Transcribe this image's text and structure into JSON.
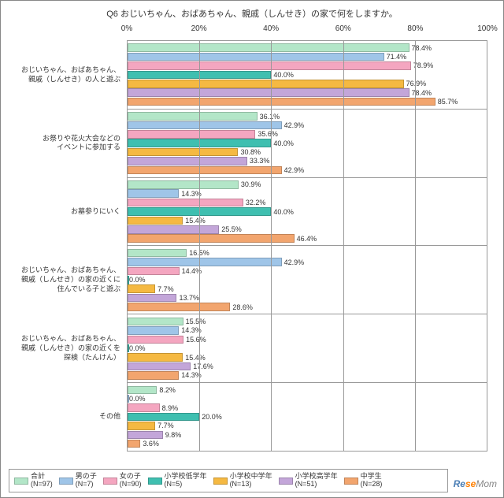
{
  "title": "Q6 おじいちゃん、おばあちゃん、親戚（しんせき）の家で何をしますか。",
  "xaxis": {
    "min": 0,
    "max": 100,
    "ticks": [
      0,
      20,
      40,
      60,
      80,
      100
    ],
    "unit": "%"
  },
  "series": [
    {
      "key": "total",
      "label": "合計\n(N=97)",
      "color": "#b3e6c8"
    },
    {
      "key": "boy",
      "label": "男の子\n(N=7)",
      "color": "#9fc5e8"
    },
    {
      "key": "girl",
      "label": "女の子\n(N=90)",
      "color": "#f4a6c0"
    },
    {
      "key": "low",
      "label": "小学校低学年\n(N=5)",
      "color": "#3fbfb0"
    },
    {
      "key": "mid",
      "label": "小学校中学年\n(N=13)",
      "color": "#f5b942"
    },
    {
      "key": "high",
      "label": "小学校高学年\n(N=51)",
      "color": "#c3a6d9"
    },
    {
      "key": "jhs",
      "label": "中学生\n(N=28)",
      "color": "#f2a56e"
    }
  ],
  "categories": [
    {
      "label": "おじいちゃん、おばあちゃん、\n親戚（しんせき）の人と遊ぶ",
      "values": {
        "total": 78.4,
        "boy": 71.4,
        "girl": 78.9,
        "low": 40.0,
        "mid": 76.9,
        "high": 78.4,
        "jhs": 85.7
      }
    },
    {
      "label": "お祭りや花火大会などの\nイベントに参加する",
      "values": {
        "total": 36.1,
        "boy": 42.9,
        "girl": 35.6,
        "low": 40.0,
        "mid": 30.8,
        "high": 33.3,
        "jhs": 42.9
      }
    },
    {
      "label": "お墓参りにいく",
      "values": {
        "total": 30.9,
        "boy": 14.3,
        "girl": 32.2,
        "low": 40.0,
        "mid": 15.4,
        "high": 25.5,
        "jhs": 46.4
      }
    },
    {
      "label": "おじいちゃん、おばあちゃん、\n親戚（しんせき）の家の近くに\n住んでいる子と遊ぶ",
      "values": {
        "total": 16.5,
        "boy": 42.9,
        "girl": 14.4,
        "low": 0.0,
        "mid": 7.7,
        "high": 13.7,
        "jhs": 28.6
      }
    },
    {
      "label": "おじいちゃん、おばあちゃん、\n親戚（しんせき）の家の近くを\n探検（たんけん）",
      "values": {
        "total": 15.5,
        "boy": 14.3,
        "girl": 15.6,
        "low": 0.0,
        "mid": 15.4,
        "high": 17.6,
        "jhs": 14.3
      }
    },
    {
      "label": "その他",
      "values": {
        "total": 8.2,
        "boy": 0.0,
        "girl": 8.9,
        "low": 20.0,
        "mid": 7.7,
        "high": 9.8,
        "jhs": 3.6
      }
    }
  ],
  "watermark": {
    "re": "Re",
    "se": "se",
    "mom": "Mom"
  },
  "label_fontsize": 9,
  "title_fontsize": 11
}
